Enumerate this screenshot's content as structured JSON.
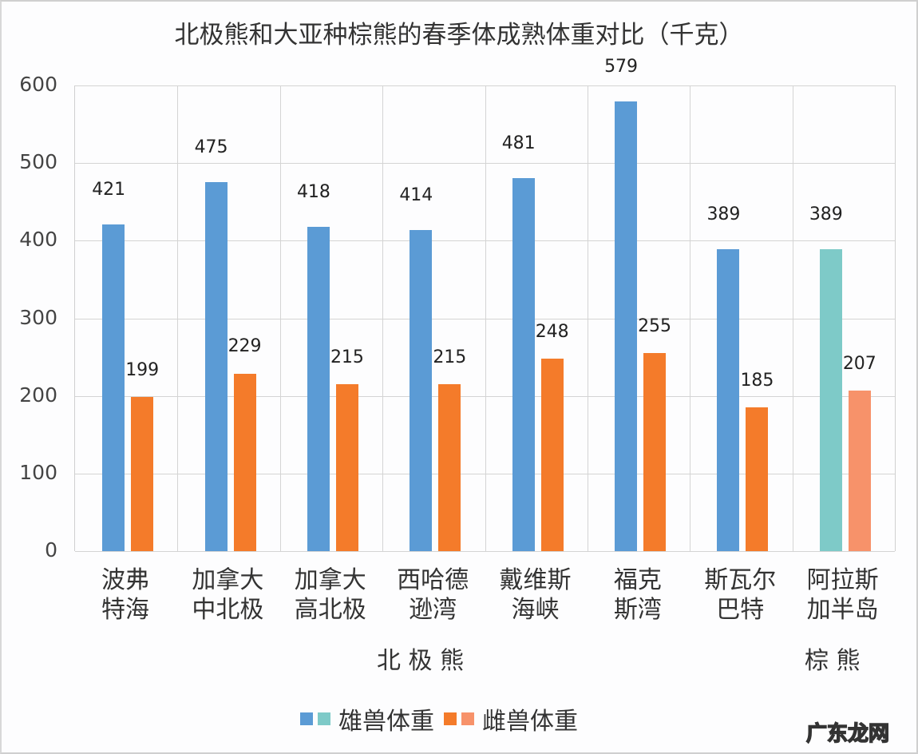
{
  "chart_data": {
    "type": "bar",
    "title": "北极熊和大亚种棕熊的春季体成熟体重对比（千克）",
    "xlabel": "",
    "ylabel": "",
    "ylim": [
      0,
      600
    ],
    "yticks": [
      0,
      100,
      200,
      300,
      400,
      500,
      600
    ],
    "grid": true,
    "legend_position": "bottom",
    "categories": [
      "波弗特海",
      "加拿大中北极",
      "加拿大高北极",
      "西哈德逊湾",
      "戴维斯海峡",
      "福克斯湾",
      "斯瓦尔巴特",
      "阿拉斯加半岛"
    ],
    "category_lines": [
      [
        "波弗",
        "特海"
      ],
      [
        "加拿大",
        "中北极"
      ],
      [
        "加拿大",
        "高北极"
      ],
      [
        "西哈德",
        "逊湾"
      ],
      [
        "戴维斯",
        "海峡"
      ],
      [
        "福克",
        "斯湾"
      ],
      [
        "斯瓦尔",
        "巴特"
      ],
      [
        "阿拉斯",
        "加半岛"
      ]
    ],
    "groups": [
      {
        "label": "北 极 熊",
        "categories": [
          "波弗特海",
          "加拿大中北极",
          "加拿大高北极",
          "西哈德逊湾",
          "戴维斯海峡",
          "福克斯湾",
          "斯瓦尔巴特"
        ]
      },
      {
        "label": "棕 熊",
        "categories": [
          "阿拉斯加半岛"
        ]
      }
    ],
    "series": [
      {
        "name": "雄兽体重",
        "values": [
          421,
          475,
          418,
          414,
          481,
          579,
          389,
          389
        ],
        "colors": [
          "#5b9bd5",
          "#5b9bd5",
          "#5b9bd5",
          "#5b9bd5",
          "#5b9bd5",
          "#5b9bd5",
          "#5b9bd5",
          "#7ecac8"
        ]
      },
      {
        "name": "雌兽体重",
        "values": [
          199,
          229,
          215,
          215,
          248,
          255,
          185,
          207
        ],
        "colors": [
          "#f47b2a",
          "#f47b2a",
          "#f47b2a",
          "#f47b2a",
          "#f47b2a",
          "#f47b2a",
          "#f47b2a",
          "#f7926a"
        ]
      }
    ],
    "legend": [
      {
        "label": "雄兽体重",
        "swatches": [
          "#5b9bd5",
          "#7ecac8"
        ]
      },
      {
        "label": "雌兽体重",
        "swatches": [
          "#f47b2a",
          "#f7926a"
        ]
      }
    ]
  },
  "watermark": "广东龙网"
}
